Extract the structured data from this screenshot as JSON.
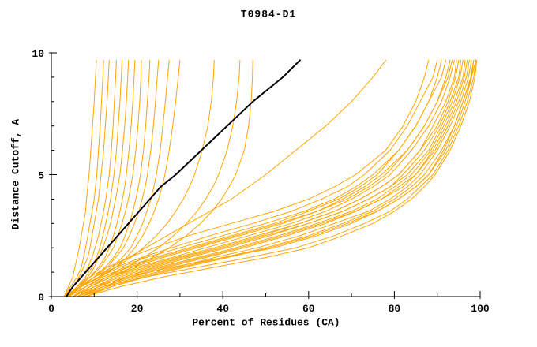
{
  "chart_data": {
    "type": "line",
    "title": "T0984-D1",
    "xlabel": "Percent of Residues (CA)",
    "ylabel": "Distance Cutoff, A",
    "xlim": [
      0,
      100
    ],
    "ylim": [
      0,
      10
    ],
    "x_major": [
      0,
      20,
      40,
      60,
      80,
      100
    ],
    "x_minor": 10,
    "y_major": [
      0,
      5,
      10
    ],
    "y_minor": 1,
    "grid": false,
    "legend": "none",
    "colors": {
      "prediction": "#FFA500",
      "reference": "#000000"
    },
    "y_grid": [
      0,
      0.4,
      0.8,
      1.2,
      1.6,
      2,
      2.5,
      3,
      3.5,
      4,
      4.5,
      5,
      6,
      7,
      8,
      9,
      9.7
    ],
    "series": [
      {
        "c": "#FFA500",
        "w": 1,
        "x": [
          3,
          4,
          5,
          5.5,
          6,
          6.5,
          7,
          7.5,
          8,
          8.2,
          8.5,
          8.8,
          9.2,
          9.6,
          10,
          10.3,
          10.5
        ]
      },
      {
        "c": "#FFA500",
        "w": 1,
        "x": [
          3,
          4.5,
          6,
          7,
          7.5,
          8,
          8.5,
          9,
          9.5,
          10,
          10.3,
          10.6,
          11,
          11.4,
          11.7,
          12,
          12.2
        ]
      },
      {
        "c": "#FFA500",
        "w": 1,
        "x": [
          3.5,
          5,
          6.5,
          7.5,
          8.5,
          9,
          9.5,
          10,
          10.5,
          11,
          11.3,
          11.6,
          12.2,
          12.6,
          13,
          13.3,
          13.5
        ]
      },
      {
        "c": "#FFA500",
        "w": 1,
        "x": [
          3,
          5,
          7,
          8.5,
          9.5,
          10.2,
          11,
          11.6,
          12.2,
          12.7,
          13.1,
          13.5,
          14,
          14.4,
          14.7,
          15,
          15.2
        ]
      },
      {
        "c": "#FFA500",
        "w": 1,
        "x": [
          4,
          6,
          8,
          9.5,
          10.5,
          11.3,
          12,
          12.7,
          13.3,
          13.8,
          14.2,
          14.6,
          15.2,
          15.6,
          16,
          16.3,
          16.5
        ]
      },
      {
        "c": "#FFA500",
        "w": 1,
        "x": [
          3.5,
          6,
          8.5,
          10,
          11,
          12,
          13,
          13.8,
          14.4,
          15,
          15.5,
          16,
          16.6,
          17.1,
          17.5,
          17.8,
          18
        ]
      },
      {
        "c": "#FFA500",
        "w": 1,
        "x": [
          4,
          6.5,
          9,
          11,
          12.5,
          13.5,
          14.5,
          15.3,
          16,
          16.6,
          17.1,
          17.5,
          18.1,
          18.6,
          19,
          19.3,
          19.5
        ]
      },
      {
        "c": "#FFA500",
        "w": 1,
        "x": [
          3.5,
          6,
          9,
          11.5,
          13,
          14.5,
          15.5,
          16.5,
          17.3,
          18,
          18.5,
          19,
          19.7,
          20.2,
          20.6,
          20.9,
          21
        ]
      },
      {
        "c": "#FFA500",
        "w": 1,
        "x": [
          4,
          7,
          10,
          12.5,
          14.5,
          16,
          17.2,
          18.2,
          19,
          19.7,
          20.3,
          20.8,
          21.5,
          22,
          22.4,
          22.8,
          23
        ]
      },
      {
        "c": "#FFA500",
        "w": 1,
        "x": [
          3.5,
          6.5,
          10,
          13,
          15,
          16.8,
          18.2,
          19.4,
          20.4,
          21.2,
          21.9,
          22.4,
          23.2,
          23.8,
          24.3,
          24.7,
          25
        ]
      },
      {
        "c": "#FFA500",
        "w": 1,
        "x": [
          4,
          7,
          11,
          14,
          16.5,
          18.5,
          20,
          21.3,
          22.3,
          23.2,
          23.9,
          24.5,
          25.4,
          26,
          26.6,
          27.1,
          27.5
        ]
      },
      {
        "c": "#FFA500",
        "w": 1,
        "x": [
          3.5,
          7,
          11.5,
          15,
          17.5,
          19.5,
          21.3,
          22.8,
          24,
          25,
          25.8,
          26.5,
          27.5,
          28.3,
          29,
          29.6,
          30
        ]
      },
      {
        "c": "#FFA500",
        "w": 1,
        "x": [
          4,
          7,
          11,
          15,
          18.5,
          21.5,
          24.5,
          27,
          29,
          30.8,
          32.2,
          33.4,
          35.2,
          36.5,
          37.3,
          37.8,
          38
        ]
      },
      {
        "c": "#FFA500",
        "w": 1,
        "x": [
          4,
          8,
          13,
          17.5,
          21.5,
          25,
          28.5,
          31.5,
          34,
          36,
          37.7,
          39,
          41,
          42.3,
          43.2,
          43.8,
          44
        ]
      },
      {
        "c": "#FFA500",
        "w": 1,
        "x": [
          5,
          9,
          14,
          19,
          23.5,
          27.5,
          31.5,
          34.8,
          37.5,
          39.7,
          41.5,
          43,
          45,
          46,
          46.6,
          46.9,
          47
        ]
      },
      {
        "c": "#FFA500",
        "w": 1,
        "x": [
          4,
          7,
          10,
          14,
          18,
          22,
          27,
          32,
          37,
          42,
          46,
          50,
          57,
          64,
          70,
          75,
          78
        ]
      },
      {
        "c": "#FFA500",
        "w": 1,
        "x": [
          4,
          6,
          9,
          13,
          18,
          24,
          32,
          42,
          52,
          60,
          66,
          71,
          78,
          82,
          85,
          87,
          88
        ]
      },
      {
        "c": "#FFA500",
        "w": 1,
        "x": [
          4,
          7,
          10,
          15,
          21,
          28,
          37,
          47,
          56,
          63,
          69,
          73,
          79,
          83,
          86,
          89,
          90
        ]
      },
      {
        "c": "#FFA500",
        "w": 1,
        "x": [
          5,
          8,
          12,
          17,
          24,
          32,
          42,
          52,
          60,
          67,
          72,
          76,
          81,
          85,
          88,
          90,
          91
        ]
      },
      {
        "c": "#FFA500",
        "w": 1,
        "x": [
          4,
          7,
          11,
          16,
          22,
          30,
          40,
          50,
          59,
          66,
          71,
          75,
          81,
          85,
          88,
          91,
          92
        ]
      },
      {
        "c": "#FFA500",
        "w": 1,
        "x": [
          5,
          9,
          13,
          19,
          26,
          34,
          44,
          54,
          62,
          69,
          74,
          78,
          83,
          87,
          90,
          92,
          93
        ]
      },
      {
        "c": "#FFA500",
        "w": 1,
        "x": [
          4,
          8,
          12,
          18,
          25,
          33,
          43,
          53,
          62,
          68,
          73,
          77,
          83,
          87,
          90,
          92.5,
          93.5
        ]
      },
      {
        "c": "#FFA500",
        "w": 1,
        "x": [
          5,
          9,
          14,
          20,
          28,
          36,
          46,
          56,
          64,
          70,
          75,
          79,
          84,
          88,
          91,
          93,
          94
        ]
      },
      {
        "c": "#FFA500",
        "w": 1,
        "x": [
          6,
          10,
          15,
          22,
          30,
          39,
          49,
          58,
          66,
          72,
          77,
          81,
          86,
          89,
          92,
          94,
          94.5
        ]
      },
      {
        "c": "#FFA500",
        "w": 1,
        "x": [
          5,
          9,
          14,
          21,
          29,
          38,
          48,
          58,
          66,
          72,
          77,
          81,
          86,
          90,
          92.5,
          94.3,
          95
        ]
      },
      {
        "c": "#FFA500",
        "w": 1,
        "x": [
          6,
          11,
          17,
          24,
          32,
          41,
          51,
          60,
          68,
          74,
          79,
          82,
          87,
          90.5,
          93,
          95,
          95.5
        ]
      },
      {
        "c": "#FFA500",
        "w": 1,
        "x": [
          5,
          10,
          16,
          23,
          31,
          40,
          50,
          60,
          68,
          74,
          79,
          83,
          88,
          91,
          93.5,
          95.3,
          96
        ]
      },
      {
        "c": "#FFA500",
        "w": 1,
        "x": [
          6,
          11,
          17,
          25,
          34,
          43,
          53,
          62,
          70,
          76,
          80,
          84,
          88.5,
          91.5,
          94,
          96,
          96.5
        ]
      },
      {
        "c": "#FFA500",
        "w": 1,
        "x": [
          7,
          12,
          19,
          27,
          36,
          45,
          55,
          64,
          71,
          77,
          81,
          85,
          89,
          92,
          94.5,
          96.3,
          97
        ]
      },
      {
        "c": "#FFA500",
        "w": 1,
        "x": [
          6,
          12,
          18,
          26,
          35,
          44,
          54,
          63,
          71,
          77,
          82,
          85,
          89.5,
          92.5,
          95,
          96.8,
          97.5
        ]
      },
      {
        "c": "#FFA500",
        "w": 1,
        "x": [
          7,
          13,
          20,
          29,
          38,
          48,
          58,
          66,
          74,
          79,
          83,
          86,
          90,
          93,
          95.5,
          97.3,
          98
        ]
      },
      {
        "c": "#FFA500",
        "w": 1,
        "x": [
          8,
          14,
          21,
          30,
          40,
          50,
          60,
          68,
          75,
          80,
          84,
          87,
          91,
          94,
          96,
          97.8,
          98.5
        ]
      },
      {
        "c": "#FFA500",
        "w": 1,
        "x": [
          7,
          14,
          22,
          31,
          41,
          51,
          61,
          69,
          76,
          81,
          85,
          88,
          91.5,
          94,
          96,
          98,
          99
        ]
      },
      {
        "c": "#FFA500",
        "w": 1,
        "x": [
          5,
          10,
          18,
          28,
          40,
          52,
          62,
          70,
          76,
          81,
          85,
          88,
          92,
          94.5,
          96.5,
          98,
          98.5
        ]
      },
      {
        "c": "#FFA500",
        "w": 1,
        "x": [
          6,
          12,
          22,
          34,
          46,
          57,
          66,
          73,
          79,
          83,
          86,
          89,
          92.5,
          95,
          97,
          98.5,
          99
        ]
      },
      {
        "c": "#FFA500",
        "w": 1,
        "x": [
          8,
          16,
          26,
          38,
          50,
          60,
          68,
          75,
          80,
          84,
          87,
          89.5,
          93,
          95.5,
          97.5,
          98.8,
          99.2
        ]
      },
      {
        "c": "#000000",
        "w": 2,
        "x": [
          3.5,
          5,
          7,
          9,
          11,
          13,
          15.5,
          18,
          20.5,
          23,
          25.5,
          29,
          35,
          41,
          47,
          54,
          58
        ]
      }
    ]
  }
}
